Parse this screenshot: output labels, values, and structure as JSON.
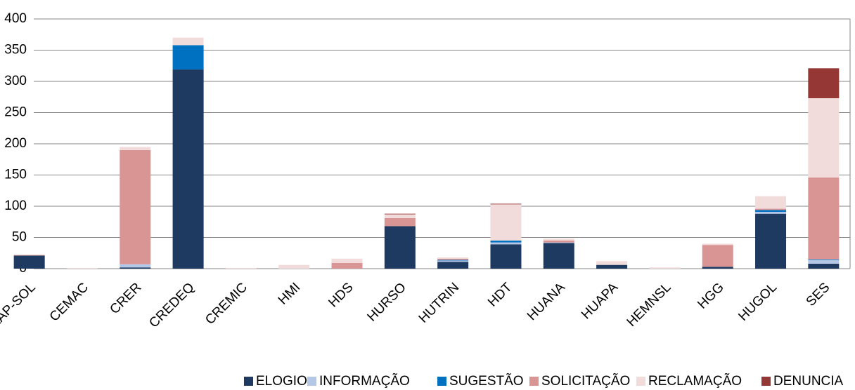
{
  "chart_data": {
    "type": "stacked_bar",
    "categories": [
      "CEAP-SOL",
      "CEMAC",
      "CRER",
      "CREDEQ",
      "CREMIC",
      "HMI",
      "HDS",
      "HURSO",
      "HUTRIN",
      "HDT",
      "HUANA",
      "HUAPA",
      "HEMNSL",
      "HGG",
      "HUGOL",
      "SES"
    ],
    "series": [
      {
        "name": "ELOGIO",
        "color": "#1f3a60",
        "values": [
          21,
          0,
          2,
          319,
          0,
          0,
          0,
          68,
          11,
          39,
          41,
          6,
          0,
          3,
          88,
          8
        ]
      },
      {
        "name": "INFORMAÇÃO",
        "color": "#b4c7e7",
        "values": [
          0,
          0,
          5,
          0,
          0,
          0,
          0,
          0,
          2,
          3,
          1,
          0,
          0,
          0,
          3,
          6
        ]
      },
      {
        "name": "SUGESTÃO",
        "color": "#0070c0",
        "values": [
          0,
          0,
          0,
          39,
          0,
          0,
          0,
          0,
          1,
          3,
          0,
          0,
          0,
          0,
          3,
          1
        ]
      },
      {
        "name": "SOLICITAÇÃO",
        "color": "#d99594",
        "values": [
          1,
          0,
          183,
          0,
          0,
          0,
          9,
          13,
          2,
          0,
          3,
          0,
          0,
          35,
          2,
          131
        ]
      },
      {
        "name": "RECLAMAÇÃO",
        "color": "#f2dcdb",
        "values": [
          0,
          1,
          5,
          12,
          1,
          6,
          7,
          6,
          2,
          58,
          3,
          6,
          2,
          2,
          20,
          127
        ]
      },
      {
        "name": "DENUNCIA",
        "color": "#953735",
        "values": [
          0,
          0,
          0,
          0,
          0,
          0,
          0,
          1,
          0,
          1,
          0,
          0,
          0,
          0,
          0,
          48
        ]
      }
    ],
    "ylim": [
      0,
      400
    ],
    "yticks": [
      0,
      50,
      100,
      150,
      200,
      250,
      300,
      350,
      400
    ],
    "grid": true,
    "legend": "bottom"
  }
}
